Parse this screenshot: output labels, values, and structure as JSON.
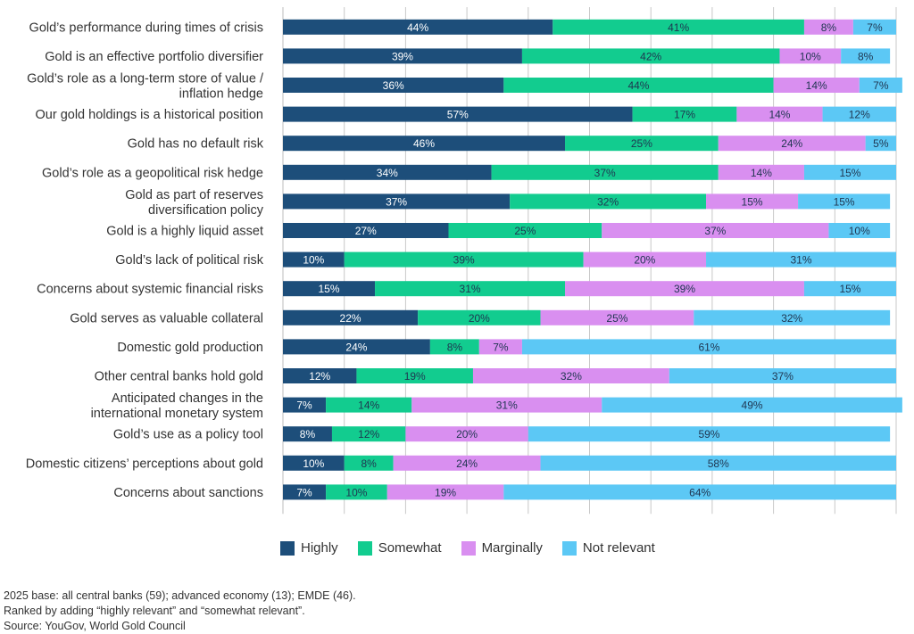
{
  "colors": {
    "highly": "#1d4e7a",
    "somewhat": "#12cc8f",
    "marginally": "#d98ff0",
    "not_relevant": "#5cc8f5",
    "gridline": "#c8c8c8"
  },
  "legend": [
    {
      "key": "highly",
      "label": "Highly"
    },
    {
      "key": "somewhat",
      "label": "Somewhat"
    },
    {
      "key": "marginally",
      "label": "Marginally"
    },
    {
      "key": "not_relevant",
      "label": "Not relevant"
    }
  ],
  "notes": {
    "line1": "2025 base: all central banks (59); advanced economy (13); EMDE (46).",
    "line2": "Ranked by adding “highly relevant” and “somewhat relevant”.",
    "line3": "Source: YouGov, World Gold Council"
  },
  "chart_data": {
    "type": "bar",
    "orientation": "horizontal",
    "stacked": true,
    "xlim": [
      0,
      100
    ],
    "grid": true,
    "legend_position": "bottom",
    "categories": [
      [
        "Gold’s performance during times of crisis"
      ],
      [
        "Gold is an effective portfolio diversifier"
      ],
      [
        "Gold’s role as a long-term store of value /",
        "inflation hedge"
      ],
      [
        "Our gold holdings is a historical position"
      ],
      [
        "Gold has no default risk"
      ],
      [
        "Gold’s role as a geopolitical risk hedge"
      ],
      [
        "Gold as part of reserves",
        "diversification policy"
      ],
      [
        "Gold is a highly liquid asset"
      ],
      [
        "Gold’s lack of political risk"
      ],
      [
        "Concerns about systemic financial risks"
      ],
      [
        "Gold serves as valuable collateral"
      ],
      [
        "Domestic gold production"
      ],
      [
        "Other central banks hold gold"
      ],
      [
        "Anticipated changes in the",
        "international monetary system"
      ],
      [
        "Gold’s use as a policy tool"
      ],
      [
        "Domestic citizens’ perceptions about gold"
      ],
      [
        "Concerns about sanctions"
      ]
    ],
    "series": [
      {
        "name": "Highly",
        "key": "highly",
        "values": [
          44,
          39,
          36,
          57,
          46,
          34,
          37,
          27,
          10,
          15,
          22,
          24,
          12,
          7,
          8,
          10,
          7
        ]
      },
      {
        "name": "Somewhat",
        "key": "somewhat",
        "values": [
          41,
          42,
          44,
          17,
          25,
          37,
          32,
          25,
          39,
          31,
          20,
          8,
          19,
          14,
          12,
          8,
          10
        ]
      },
      {
        "name": "Marginally",
        "key": "marginally",
        "values": [
          8,
          10,
          14,
          14,
          24,
          14,
          15,
          37,
          20,
          39,
          25,
          7,
          32,
          31,
          20,
          24,
          19
        ]
      },
      {
        "name": "Not relevant",
        "key": "not_relevant",
        "values": [
          7,
          8,
          7,
          12,
          5,
          15,
          15,
          10,
          31,
          15,
          32,
          61,
          37,
          49,
          59,
          58,
          64
        ]
      }
    ]
  }
}
